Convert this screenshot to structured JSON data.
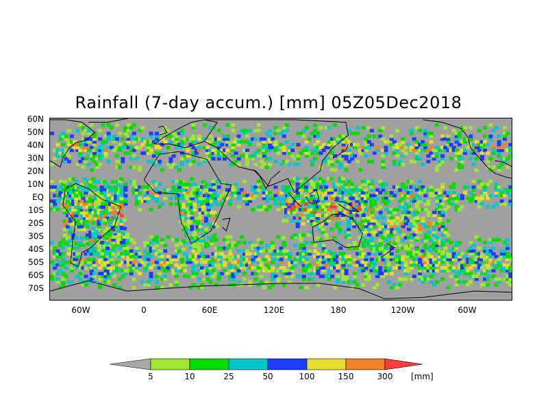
{
  "title": "Rainfall (7-day accum.) [mm] 05Z05Dec2018",
  "lat_labels": [
    "60N",
    "50N",
    "40N",
    "30N",
    "20N",
    "10N",
    "EQ",
    "10S",
    "20S",
    "30S",
    "40S",
    "50S",
    "60S",
    "70S"
  ],
  "lon_labels": [
    "60W",
    "0",
    "60E",
    "120E",
    "180",
    "120W",
    "60W"
  ],
  "colorbar": {
    "unit": "[mm]",
    "thresholds": [
      "5",
      "10",
      "25",
      "50",
      "100",
      "150",
      "300"
    ],
    "colors": [
      "#a9a9a9",
      "#a0e632",
      "#00dc00",
      "#00c8c8",
      "#1e3cff",
      "#e6dc32",
      "#f08228",
      "#fa3c3c"
    ]
  },
  "colors": {
    "land_bg": "#a0a0a0",
    "coast": "#000000"
  }
}
